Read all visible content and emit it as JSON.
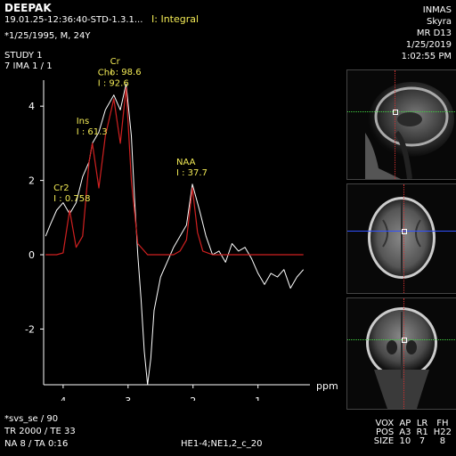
{
  "header": {
    "patient_name": "DEEPAK",
    "series_id": "19.01.25-12:36:40-STD-1.3.1...",
    "integral_label": "I: Integral",
    "patient_info": "*1/25/1995, M, 24Y",
    "study": "STUDY 1",
    "image": "7 IMA 1 / 1"
  },
  "header_right": {
    "institution": "INMAS",
    "scanner": "Skyra",
    "station": "MR D13",
    "date": "1/25/2019",
    "time": "1:02:55 PM"
  },
  "chart_data": {
    "type": "line",
    "xlabel": "ppm",
    "x_reversed": true,
    "xlim": [
      4.3,
      0.2
    ],
    "ylim": [
      -3.5,
      4.7
    ],
    "x_ticks": [
      4,
      3,
      2,
      1
    ],
    "y_ticks": [
      4,
      2,
      0,
      -2
    ],
    "peaks": [
      {
        "name": "Cho",
        "integral_label": "I : 92.6",
        "ppm": 3.22,
        "height": 4.3
      },
      {
        "name": "Cr",
        "integral_label": "I : 98.6",
        "ppm": 3.03,
        "height": 4.6
      },
      {
        "name": "Ins",
        "integral_label": "I : 61.3",
        "ppm": 3.55,
        "height": 3.0
      },
      {
        "name": "Cr2",
        "integral_label": "I : 0.758",
        "ppm": 3.9,
        "height": 1.2
      },
      {
        "name": "NAA",
        "integral_label": "I : 37.7",
        "ppm": 2.01,
        "height": 1.9
      }
    ],
    "series": [
      {
        "name": "",
        "color": "#ffffff",
        "points": [
          [
            4.27,
            0.5
          ],
          [
            4.2,
            0.8
          ],
          [
            4.1,
            1.2
          ],
          [
            4.0,
            1.4
          ],
          [
            3.9,
            1.1
          ],
          [
            3.8,
            1.4
          ],
          [
            3.7,
            2.1
          ],
          [
            3.6,
            2.5
          ],
          [
            3.55,
            3.0
          ],
          [
            3.45,
            3.3
          ],
          [
            3.35,
            3.9
          ],
          [
            3.22,
            4.3
          ],
          [
            3.12,
            3.9
          ],
          [
            3.03,
            4.6
          ],
          [
            2.95,
            3.2
          ],
          [
            2.9,
            1.5
          ],
          [
            2.85,
            0.0
          ],
          [
            2.8,
            -1.2
          ],
          [
            2.75,
            -2.6
          ],
          [
            2.7,
            -3.5
          ],
          [
            2.65,
            -2.8
          ],
          [
            2.6,
            -1.5
          ],
          [
            2.5,
            -0.6
          ],
          [
            2.4,
            -0.2
          ],
          [
            2.3,
            0.2
          ],
          [
            2.2,
            0.5
          ],
          [
            2.1,
            0.8
          ],
          [
            2.01,
            1.9
          ],
          [
            1.9,
            1.2
          ],
          [
            1.8,
            0.5
          ],
          [
            1.7,
            0.0
          ],
          [
            1.6,
            0.1
          ],
          [
            1.5,
            -0.2
          ],
          [
            1.4,
            0.3
          ],
          [
            1.3,
            0.1
          ],
          [
            1.2,
            0.2
          ],
          [
            1.1,
            -0.1
          ],
          [
            1.0,
            -0.5
          ],
          [
            0.9,
            -0.8
          ],
          [
            0.8,
            -0.5
          ],
          [
            0.7,
            -0.6
          ],
          [
            0.6,
            -0.4
          ],
          [
            0.5,
            -0.9
          ],
          [
            0.4,
            -0.6
          ],
          [
            0.3,
            -0.4
          ]
        ]
      },
      {
        "name": "",
        "color": "#d02020",
        "points": [
          [
            4.27,
            0.0
          ],
          [
            4.1,
            0.0
          ],
          [
            4.0,
            0.05
          ],
          [
            3.9,
            1.2
          ],
          [
            3.8,
            0.2
          ],
          [
            3.7,
            0.5
          ],
          [
            3.6,
            2.5
          ],
          [
            3.55,
            3.0
          ],
          [
            3.45,
            1.8
          ],
          [
            3.35,
            3.2
          ],
          [
            3.22,
            4.2
          ],
          [
            3.12,
            3.0
          ],
          [
            3.03,
            4.5
          ],
          [
            2.95,
            2.0
          ],
          [
            2.85,
            0.3
          ],
          [
            2.7,
            0.0
          ],
          [
            2.3,
            0.0
          ],
          [
            2.2,
            0.1
          ],
          [
            2.1,
            0.4
          ],
          [
            2.01,
            1.8
          ],
          [
            1.93,
            0.6
          ],
          [
            1.85,
            0.1
          ],
          [
            1.7,
            0.0
          ],
          [
            0.3,
            0.0
          ]
        ]
      }
    ]
  },
  "footer": {
    "sequence": "*svs_se / 90",
    "tr_te": "TR 2000 / TE 33",
    "na_ta": "NA 8 / TA 0:16",
    "coil": "HE1-4;NE1,2_c_20"
  },
  "vox_table": {
    "headers": [
      "VOX",
      "AP",
      "LR",
      "FH"
    ],
    "rows": [
      [
        "POS",
        "A3",
        "R1",
        "H22"
      ],
      [
        "SIZE",
        "10",
        "7",
        "8"
      ]
    ]
  },
  "colors": {
    "label_yellow": "#f2ea55",
    "fit_red": "#d02020",
    "crosshair_green": "#40d040",
    "crosshair_red": "#d03030",
    "crosshair_blue": "#3050ff"
  }
}
